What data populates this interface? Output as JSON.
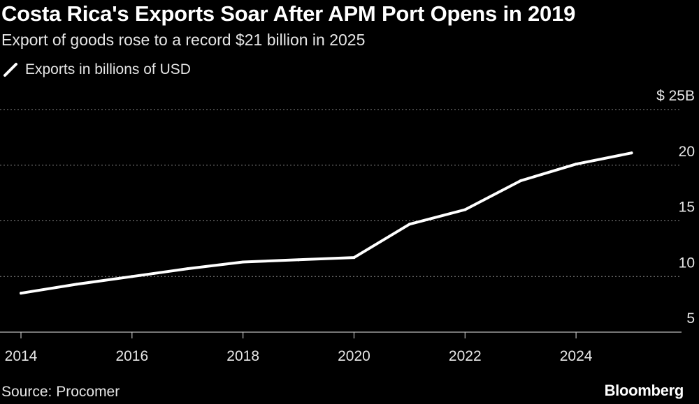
{
  "header": {
    "title": "Costa Rica's Exports Soar After APM Port Opens in 2019",
    "subtitle": "Export of goods rose to a record $21 billion in 2025"
  },
  "legend": {
    "label": "Exports in billions of USD"
  },
  "footer": {
    "source": "Source: Procomer",
    "brand": "Bloomberg"
  },
  "colors": {
    "background": "#000000",
    "line": "#ffffff",
    "grid": "#888888"
  },
  "chart_data": {
    "type": "line",
    "x": [
      2014,
      2015,
      2016,
      2017,
      2018,
      2019,
      2020,
      2021,
      2022,
      2023,
      2024,
      2025
    ],
    "series": [
      {
        "name": "Exports in billions of USD",
        "values": [
          8.5,
          9.3,
          10.0,
          10.7,
          11.3,
          11.5,
          11.7,
          14.7,
          16.0,
          18.6,
          20.1,
          21.1
        ]
      }
    ],
    "ylim": [
      5,
      25
    ],
    "xlim": [
      2014,
      2025.9
    ],
    "yticks": [
      5,
      10,
      15,
      20,
      25
    ],
    "ytick_labels": [
      "5",
      "10",
      "15",
      "20",
      "$ 25B"
    ],
    "xticks": [
      2014,
      2016,
      2018,
      2020,
      2022,
      2024
    ],
    "xtick_labels": [
      "2014",
      "2016",
      "2018",
      "2020",
      "2022",
      "2024"
    ],
    "grid": true,
    "y_axis_side": "right",
    "legend_position": "top-left"
  }
}
